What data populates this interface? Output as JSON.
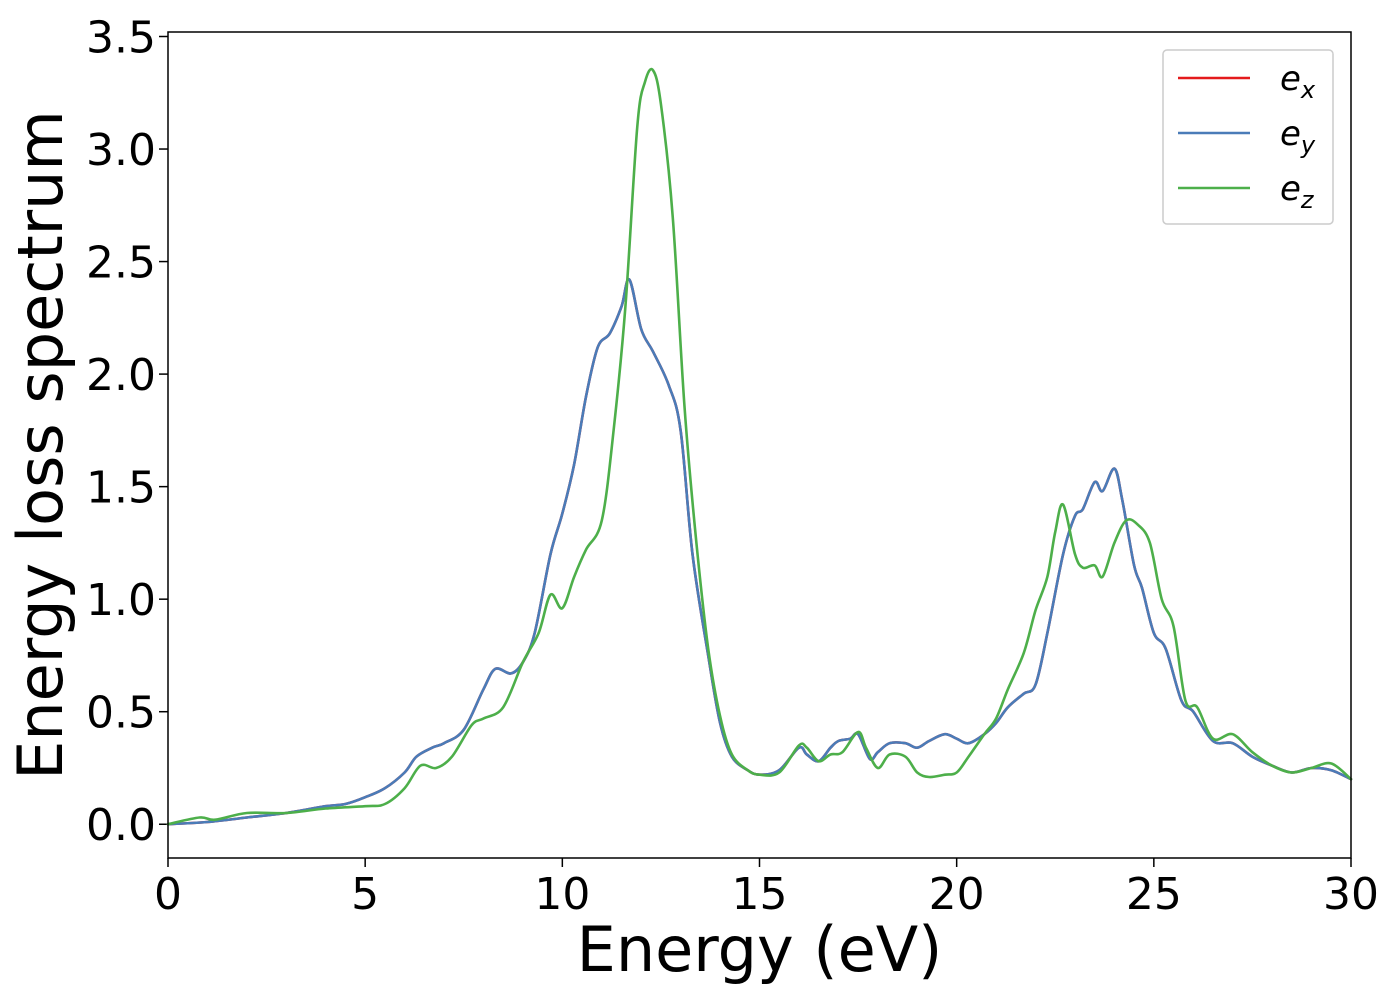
{
  "chart_data": {
    "type": "line",
    "title": "",
    "xlabel": "Energy (eV)",
    "ylabel": "Energy loss spectrum",
    "xlim": [
      0,
      30
    ],
    "ylim": [
      -0.15,
      3.52
    ],
    "xticks": [
      0,
      5,
      10,
      15,
      20,
      25,
      30
    ],
    "yticks": [
      0.0,
      0.5,
      1.0,
      1.5,
      2.0,
      2.5,
      3.0,
      3.5
    ],
    "xtick_labels": [
      "0",
      "5",
      "10",
      "15",
      "20",
      "25",
      "30"
    ],
    "ytick_labels": [
      "0.0",
      "0.5",
      "1.0",
      "1.5",
      "2.0",
      "2.5",
      "3.0",
      "3.5"
    ],
    "grid": false,
    "legend_position": "top-right",
    "series": [
      {
        "name": "e",
        "subscript": "x",
        "color": "#e41a1c",
        "x": [
          0,
          1,
          2,
          3,
          4,
          4.5,
          5,
          5.5,
          6,
          6.3,
          6.7,
          7,
          7.5,
          8,
          8.3,
          8.7,
          9,
          9.3,
          9.7,
          10,
          10.3,
          10.6,
          10.9,
          11.2,
          11.5,
          11.7,
          12,
          12.3,
          12.7,
          13,
          13.3,
          13.7,
          14,
          14.3,
          14.7,
          15,
          15.5,
          16,
          16.2,
          16.5,
          16.8,
          17,
          17.3,
          17.5,
          17.8,
          18,
          18.3,
          18.7,
          19,
          19.3,
          19.7,
          20,
          20.3,
          20.7,
          21,
          21.3,
          21.7,
          22,
          22.3,
          22.7,
          23,
          23.2,
          23.5,
          23.7,
          24,
          24.2,
          24.5,
          24.7,
          25,
          25.3,
          25.7,
          26,
          26.5,
          27,
          27.5,
          28,
          28.5,
          29,
          29.5,
          30
        ],
        "y": [
          0.0,
          0.01,
          0.03,
          0.05,
          0.08,
          0.09,
          0.12,
          0.16,
          0.23,
          0.3,
          0.34,
          0.36,
          0.42,
          0.6,
          0.69,
          0.67,
          0.72,
          0.85,
          1.2,
          1.38,
          1.6,
          1.9,
          2.12,
          2.18,
          2.3,
          2.42,
          2.2,
          2.1,
          1.95,
          1.75,
          1.2,
          0.75,
          0.45,
          0.3,
          0.24,
          0.22,
          0.24,
          0.34,
          0.31,
          0.28,
          0.34,
          0.37,
          0.38,
          0.4,
          0.29,
          0.32,
          0.36,
          0.36,
          0.34,
          0.37,
          0.4,
          0.38,
          0.36,
          0.4,
          0.45,
          0.52,
          0.58,
          0.62,
          0.85,
          1.2,
          1.37,
          1.4,
          1.52,
          1.48,
          1.58,
          1.44,
          1.15,
          1.05,
          0.85,
          0.78,
          0.55,
          0.5,
          0.37,
          0.36,
          0.3,
          0.26,
          0.23,
          0.25,
          0.24,
          0.2
        ]
      },
      {
        "name": "e",
        "subscript": "y",
        "color": "#4a7cb8",
        "x": [
          0,
          1,
          2,
          3,
          4,
          4.5,
          5,
          5.5,
          6,
          6.3,
          6.7,
          7,
          7.5,
          8,
          8.3,
          8.7,
          9,
          9.3,
          9.7,
          10,
          10.3,
          10.6,
          10.9,
          11.2,
          11.5,
          11.7,
          12,
          12.3,
          12.7,
          13,
          13.3,
          13.7,
          14,
          14.3,
          14.7,
          15,
          15.5,
          16,
          16.2,
          16.5,
          16.8,
          17,
          17.3,
          17.5,
          17.8,
          18,
          18.3,
          18.7,
          19,
          19.3,
          19.7,
          20,
          20.3,
          20.7,
          21,
          21.3,
          21.7,
          22,
          22.3,
          22.7,
          23,
          23.2,
          23.5,
          23.7,
          24,
          24.2,
          24.5,
          24.7,
          25,
          25.3,
          25.7,
          26,
          26.5,
          27,
          27.5,
          28,
          28.5,
          29,
          29.5,
          30
        ],
        "y": [
          0.0,
          0.01,
          0.03,
          0.05,
          0.08,
          0.09,
          0.12,
          0.16,
          0.23,
          0.3,
          0.34,
          0.36,
          0.42,
          0.6,
          0.69,
          0.67,
          0.72,
          0.85,
          1.2,
          1.38,
          1.6,
          1.9,
          2.12,
          2.18,
          2.3,
          2.42,
          2.2,
          2.1,
          1.95,
          1.75,
          1.2,
          0.75,
          0.45,
          0.3,
          0.24,
          0.22,
          0.24,
          0.34,
          0.31,
          0.28,
          0.34,
          0.37,
          0.38,
          0.4,
          0.29,
          0.32,
          0.36,
          0.36,
          0.34,
          0.37,
          0.4,
          0.38,
          0.36,
          0.4,
          0.45,
          0.52,
          0.58,
          0.62,
          0.85,
          1.2,
          1.37,
          1.4,
          1.52,
          1.48,
          1.58,
          1.44,
          1.15,
          1.05,
          0.85,
          0.78,
          0.55,
          0.5,
          0.37,
          0.36,
          0.3,
          0.26,
          0.23,
          0.25,
          0.24,
          0.2
        ]
      },
      {
        "name": "e",
        "subscript": "z",
        "color": "#4daf4a",
        "x": [
          0,
          0.8,
          1.2,
          2,
          3,
          4,
          5,
          5.5,
          6,
          6.4,
          6.8,
          7.2,
          7.7,
          8,
          8.5,
          9,
          9.4,
          9.7,
          10,
          10.3,
          10.6,
          11,
          11.3,
          11.6,
          11.9,
          12.1,
          12.3,
          12.5,
          12.8,
          13.1,
          13.4,
          13.7,
          14,
          14.3,
          14.7,
          15,
          15.5,
          16,
          16.2,
          16.5,
          16.8,
          17.1,
          17.5,
          17.7,
          18,
          18.3,
          18.7,
          19,
          19.3,
          19.7,
          20,
          20.3,
          20.7,
          21,
          21.3,
          21.7,
          22,
          22.3,
          22.5,
          22.7,
          23,
          23.2,
          23.5,
          23.7,
          24,
          24.3,
          24.6,
          24.9,
          25.2,
          25.5,
          25.8,
          26.1,
          26.5,
          27,
          27.5,
          28,
          28.5,
          29,
          29.5,
          30
        ],
        "y": [
          0.0,
          0.03,
          0.02,
          0.05,
          0.05,
          0.07,
          0.08,
          0.09,
          0.16,
          0.26,
          0.25,
          0.3,
          0.44,
          0.47,
          0.52,
          0.72,
          0.85,
          1.02,
          0.96,
          1.1,
          1.22,
          1.35,
          1.75,
          2.3,
          3.1,
          3.3,
          3.35,
          3.2,
          2.7,
          1.85,
          1.25,
          0.78,
          0.48,
          0.31,
          0.24,
          0.22,
          0.23,
          0.35,
          0.34,
          0.28,
          0.31,
          0.32,
          0.41,
          0.34,
          0.25,
          0.31,
          0.3,
          0.23,
          0.21,
          0.22,
          0.23,
          0.3,
          0.4,
          0.47,
          0.6,
          0.76,
          0.95,
          1.1,
          1.3,
          1.42,
          1.2,
          1.14,
          1.15,
          1.1,
          1.25,
          1.35,
          1.33,
          1.25,
          1.0,
          0.88,
          0.55,
          0.52,
          0.38,
          0.4,
          0.32,
          0.26,
          0.23,
          0.25,
          0.27,
          0.2
        ]
      }
    ]
  }
}
